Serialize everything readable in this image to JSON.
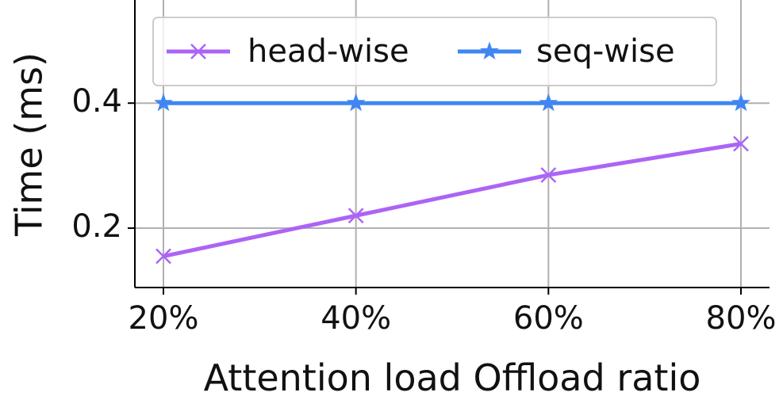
{
  "chart_data": {
    "type": "line",
    "x_label": "Attention load Offload ratio",
    "y_label": "Time (ms)",
    "categories": [
      "20%",
      "40%",
      "60%",
      "80%"
    ],
    "series": [
      {
        "name": "head-wise",
        "color": "#ac64f5",
        "marker": "x",
        "values": [
          0.155,
          0.22,
          0.285,
          0.335
        ]
      },
      {
        "name": "seq-wise",
        "color": "#3f86f2",
        "marker": "star",
        "values": [
          0.4,
          0.4,
          0.4,
          0.4
        ]
      }
    ],
    "ylim": [
      0.105,
      0.565
    ],
    "yticks": [
      0.2,
      0.4
    ],
    "grid": true,
    "legend": "upper center"
  }
}
